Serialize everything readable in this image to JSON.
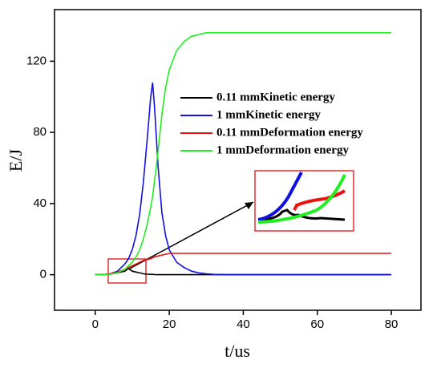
{
  "chart_data": {
    "type": "line",
    "x_label": "t/us",
    "y_label": "E/J",
    "x": [
      0,
      2,
      4,
      6,
      8,
      9,
      10,
      11,
      12,
      13,
      14,
      15,
      15.5,
      16,
      17,
      18,
      19,
      20,
      22,
      24,
      26,
      28,
      30,
      32,
      35,
      40,
      50,
      60,
      70,
      80
    ],
    "series": [
      {
        "name": "0.11 mmKinetic energy",
        "color": "#000000",
        "values": [
          0,
          0,
          0.3,
          1,
          2,
          3.5,
          2,
          1.5,
          1,
          0.5,
          0.3,
          0.2,
          0.2,
          0.1,
          0,
          0,
          0,
          0,
          0,
          0,
          0,
          0,
          0,
          0,
          0,
          0,
          0,
          0,
          0,
          0
        ]
      },
      {
        "name": "1 mmKinetic energy",
        "color": "#1010e0",
        "values": [
          0,
          0,
          0.5,
          2,
          6,
          9,
          14,
          22,
          34,
          52,
          75,
          100,
          108,
          95,
          60,
          35,
          22,
          14,
          7,
          4,
          2,
          1,
          0.5,
          0.2,
          0,
          0,
          0,
          0,
          0,
          0
        ]
      },
      {
        "name": "0.11 mmDeformation energy",
        "color": "#ee1111",
        "values": [
          0,
          0,
          0.5,
          1.5,
          3,
          4,
          5,
          6,
          7,
          8,
          8.5,
          9,
          9.5,
          10,
          10.5,
          11,
          11.5,
          12,
          12,
          12,
          12,
          12,
          12,
          12,
          12,
          12,
          12,
          12,
          12,
          12
        ]
      },
      {
        "name": "1 mmDeformation energy",
        "color": "#22ee22",
        "values": [
          0,
          0,
          0.3,
          1,
          3,
          5,
          7,
          10,
          14,
          20,
          28,
          38,
          44,
          52,
          70,
          90,
          105,
          115,
          126,
          131,
          134,
          135,
          136,
          136,
          136,
          136,
          136,
          136,
          136,
          136
        ]
      }
    ],
    "xlim": [
      -11,
      88
    ],
    "ylim": [
      -20,
      149
    ],
    "xticks": [
      0,
      20,
      40,
      60,
      80
    ],
    "yticks": [
      0,
      40,
      80,
      120
    ]
  }
}
